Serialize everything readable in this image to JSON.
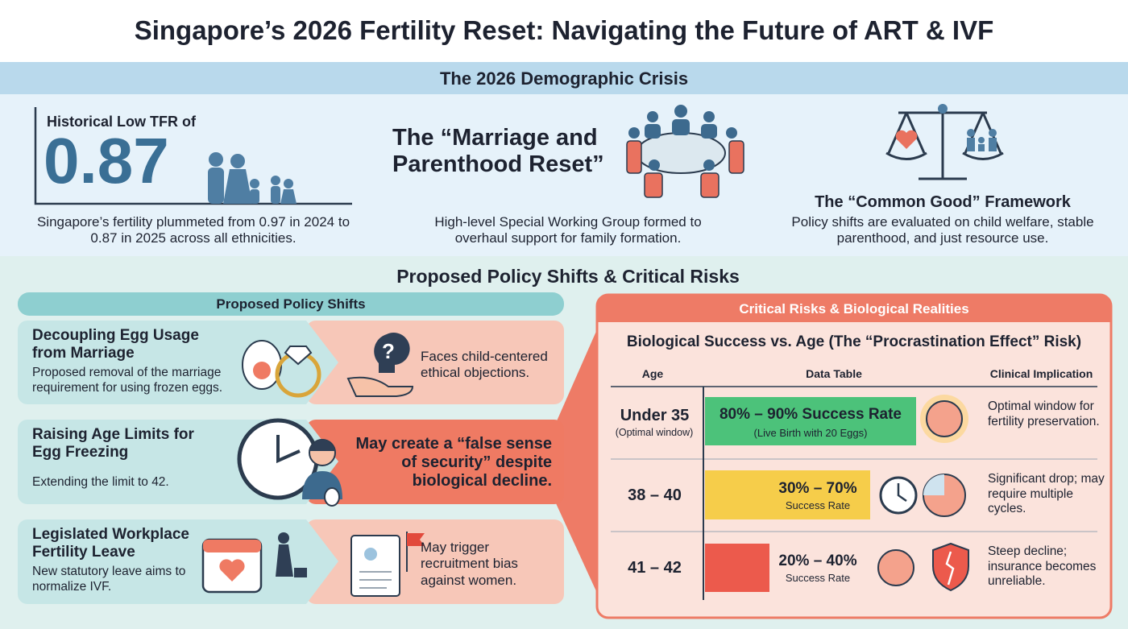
{
  "title": "Singapore’s 2026 Fertility Reset: Navigating the Future of ART & IVF",
  "crisis": {
    "heading": "The 2026 Demographic Crisis",
    "tfr": {
      "label": "Historical Low TFR of",
      "value": "0.87",
      "text": "Singapore’s fertility plummeted from 0.97 in 2024 to 0.87 in 2025 across all ethnicities."
    },
    "reset": {
      "title": "The “Marriage and Parenthood Reset”",
      "text": "High-level Special Working Group formed to overhaul support for family formation."
    },
    "common_good": {
      "title": "The “Common Good” Framework",
      "text": "Policy shifts are evaluated on child welfare, stable parenthood, and just resource use."
    }
  },
  "policy": {
    "heading": "Proposed Policy Shifts & Critical Risks",
    "shifts_heading": "Proposed Policy Shifts",
    "shifts": [
      {
        "title": "Decoupling Egg Usage from Marriage",
        "text": "Proposed removal of the marriage requirement for using frozen eggs.",
        "risk": "Faces child-centered ethical objections."
      },
      {
        "title": "Raising Age Limits for Egg Freezing",
        "text": "Extending the limit to 42.",
        "risk": "May create a “false sense of security” despite biological decline."
      },
      {
        "title": "Legislated Workplace Fertility Leave",
        "text": "New statutory leave aims to normalize IVF.",
        "risk": "May trigger recruitment bias against women."
      }
    ]
  },
  "risks": {
    "heading": "Critical Risks & Biological Realities",
    "table_title": "Biological Success vs. Age (The “Procrastination Effect” Risk)",
    "columns": [
      "Age",
      "Data Table",
      "Clinical Implication"
    ],
    "rows": [
      {
        "age": "Under 35",
        "age_note": "(Optimal window)",
        "rate": "80% – 90% Success Rate",
        "rate_note": "(Live Birth with 20 Eggs)",
        "implication": "Optimal window for fertility preservation."
      },
      {
        "age": "38 – 40",
        "rate": "30% – 70%",
        "rate_note": "Success Rate",
        "implication": "Significant drop; may require multiple cycles."
      },
      {
        "age": "41 – 42",
        "rate": "20% – 40%",
        "rate_note": "Success Rate",
        "implication": "Steep decline; insurance becomes unreliable."
      }
    ]
  }
}
